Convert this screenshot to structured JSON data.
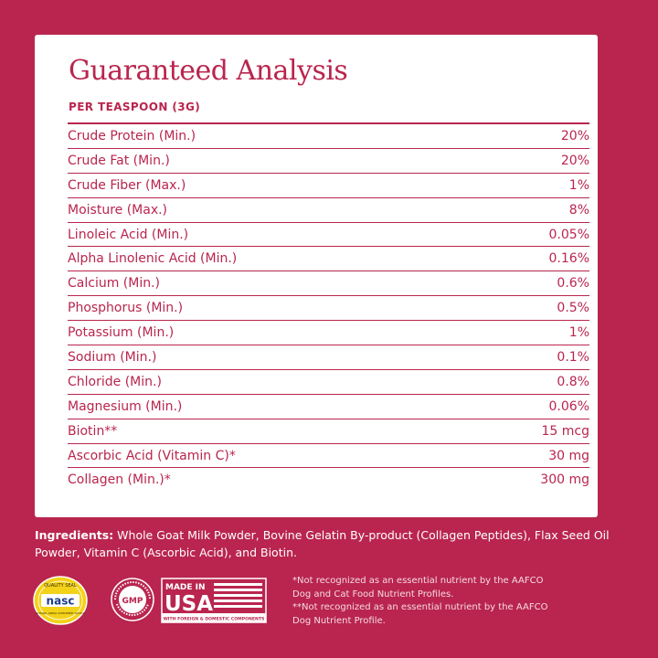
{
  "title": "Guaranteed Analysis",
  "subtitle": "PER TEASPOON (3G)",
  "rows": [
    {
      "name": "Crude Protein (Min.)",
      "value": "20%"
    },
    {
      "name": "Crude Fat (Min.)",
      "value": "20%"
    },
    {
      "name": "Crude Fiber (Max.)",
      "value": "1%"
    },
    {
      "name": "Moisture (Max.)",
      "value": "8%"
    },
    {
      "name": "Linoleic Acid (Min.)",
      "value": "0.05%"
    },
    {
      "name": "Alpha Linolenic Acid (Min.)",
      "value": "0.16%"
    },
    {
      "name": "Calcium (Min.)",
      "value": "0.6%"
    },
    {
      "name": "Phosphorus (Min.)",
      "value": "0.5%"
    },
    {
      "name": "Potassium (Min.)",
      "value": "1%"
    },
    {
      "name": "Sodium (Min.)",
      "value": "0.1%"
    },
    {
      "name": "Chloride (Min.)",
      "value": "0.8%"
    },
    {
      "name": "Magnesium (Min.)",
      "value": "0.06%"
    },
    {
      "name": "Biotin**",
      "value": "15 mcg"
    },
    {
      "name": "Ascorbic Acid (Vitamin C)*",
      "value": "30 mg"
    },
    {
      "name": "Collagen (Min.)*",
      "value": "300 mg"
    }
  ],
  "ingredients": {
    "label": "Ingredients:",
    "text": "Whole Goat Milk Powder, Bovine Gelatin By-product (Collagen Peptides), Flax Seed Oil Powder, Vitamin C (Ascorbic Acid), and Biotin."
  },
  "badges": {
    "nasc": {
      "top": "QUALITY SEAL",
      "main": "nasc",
      "bottom": "NATIONAL ANIMAL SUPPLEMENT COUNCIL"
    },
    "gmp": {
      "main": "GMP",
      "ring": "MANUFACTURING PRACTICE · GOOD · PRODUCT"
    },
    "usa": {
      "line1": "MADE IN",
      "line2": "USA",
      "line3": "WITH FOREIGN & DOMESTIC COMPONENTS"
    }
  },
  "footnotes": [
    "*Not recognized as an essential nutrient by the AAFCO",
    "Dog and Cat Food Nutrient Profiles.",
    "**Not recognized as an essential nutrient by the AAFCO",
    "Dog Nutrient Profile."
  ],
  "colors": {
    "brand": "#b9254e",
    "card": "#ffffff",
    "badge_yellow": "#f3d21a"
  }
}
